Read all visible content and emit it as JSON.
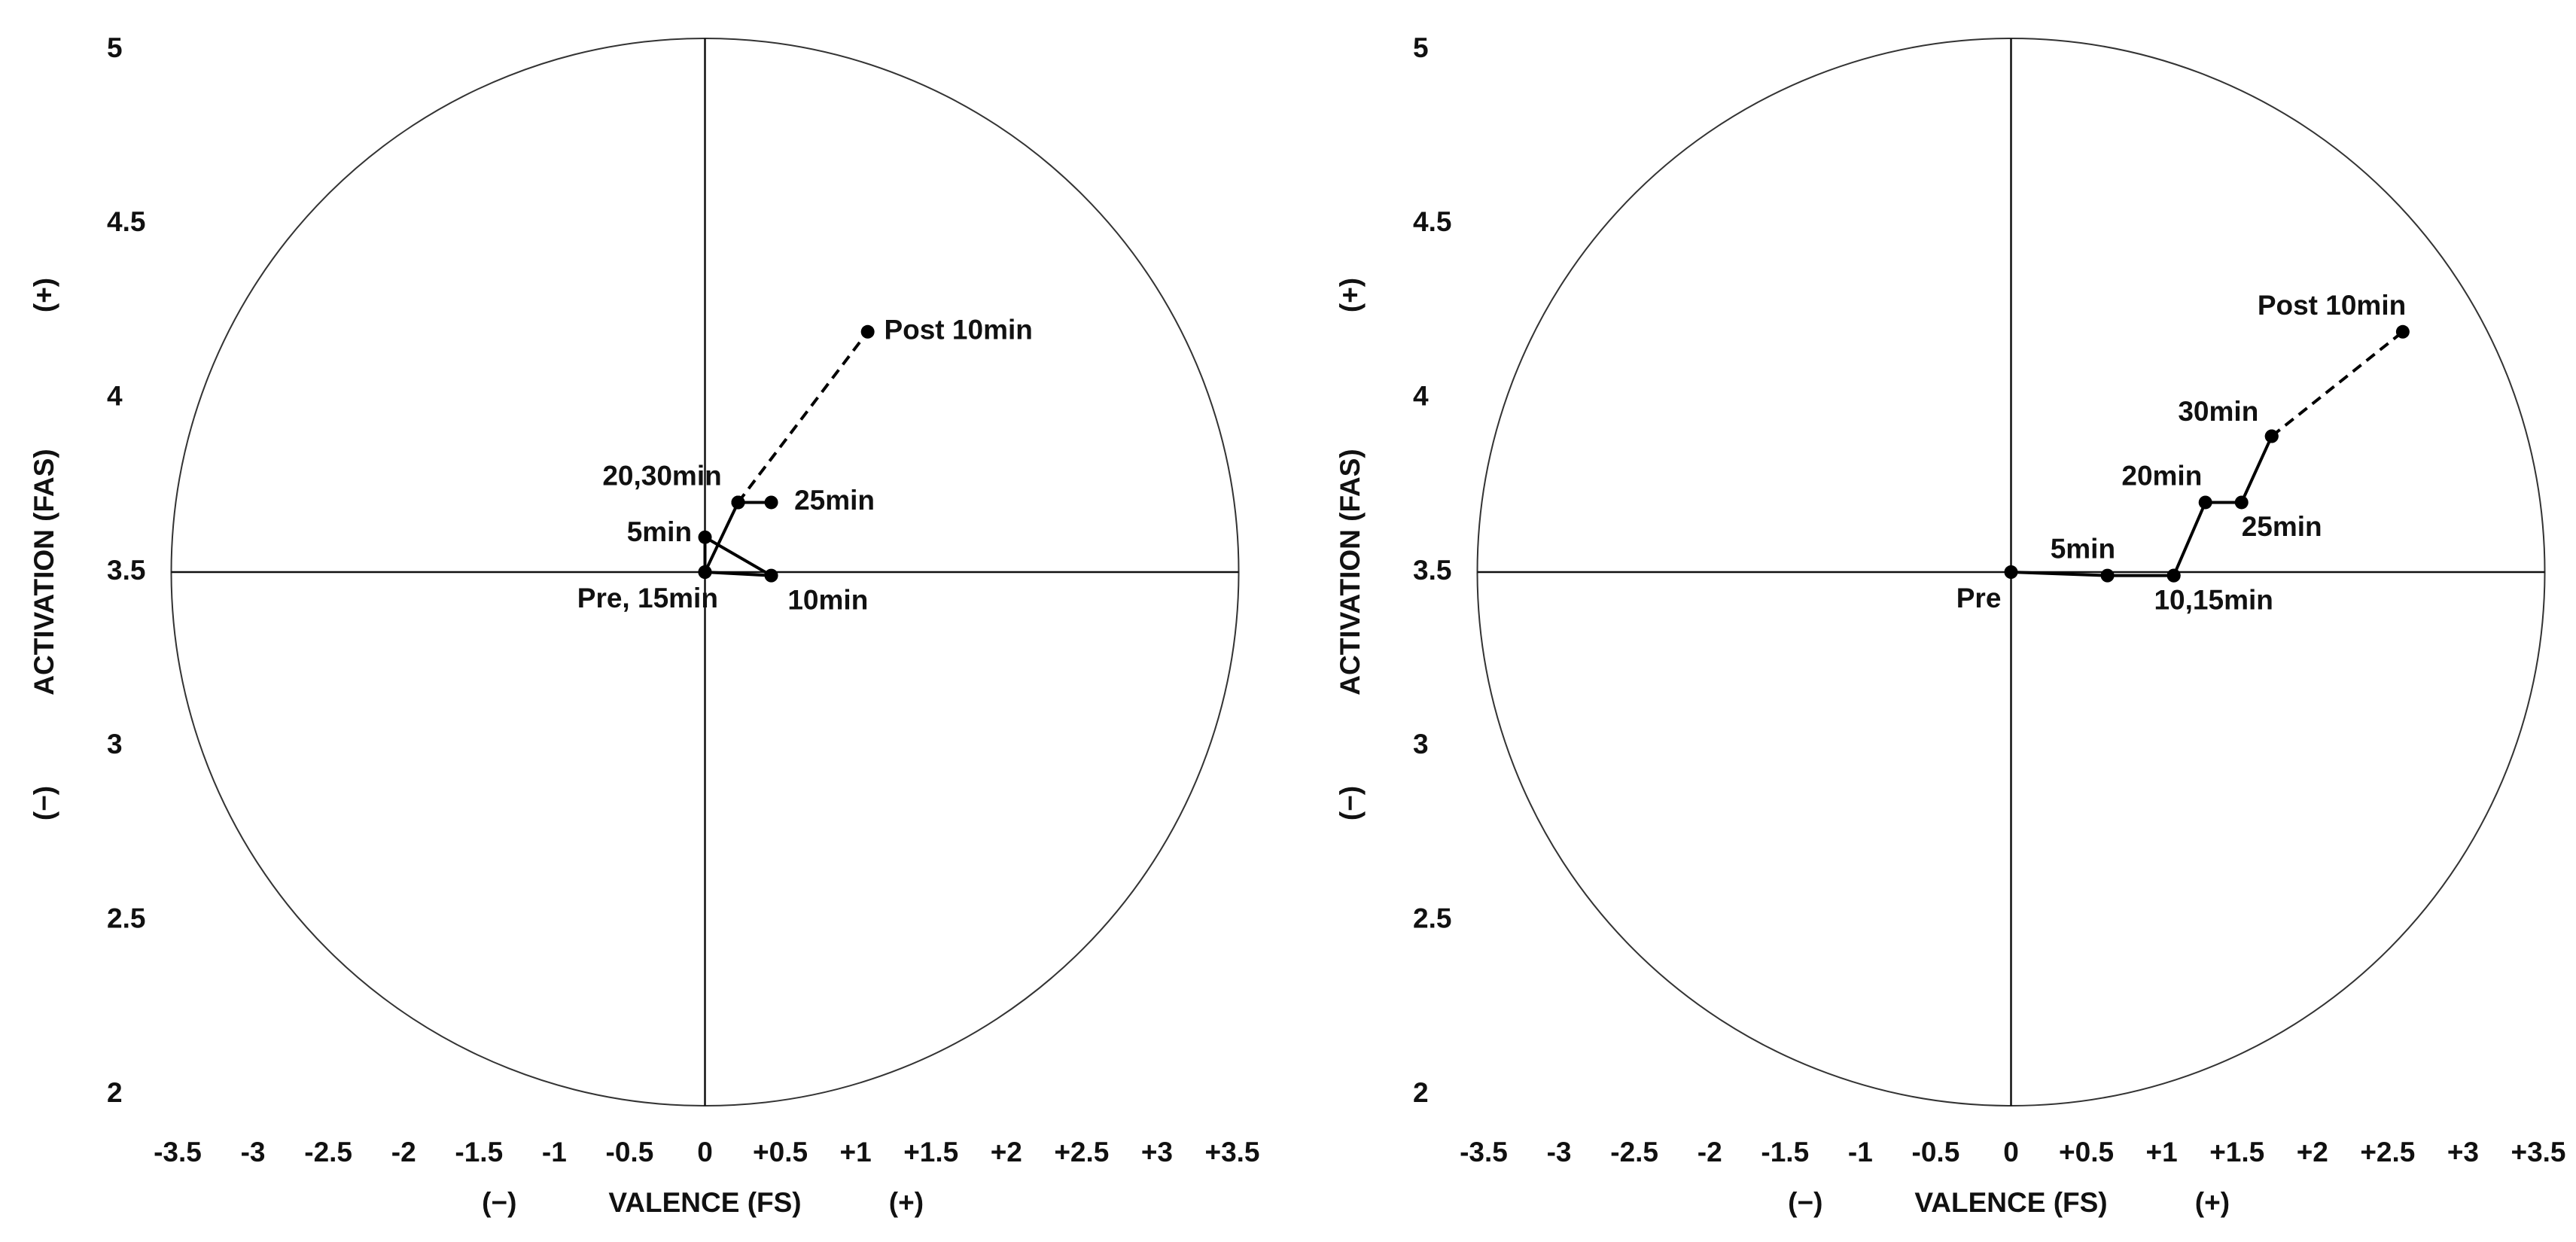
{
  "chart_data": [
    {
      "type": "circumplex",
      "x_label": "VALENCE (FS)",
      "x_sign_labels": [
        "(−)",
        "(+)"
      ],
      "y_label": "ACTIVATION (FAS)",
      "y_sign_labels": [
        "(−)",
        "(+)"
      ],
      "xlim": [
        -3.5,
        3.5
      ],
      "xticks": [
        -3.5,
        -3,
        -2.5,
        -2,
        -1.5,
        -1,
        -0.5,
        0,
        {
          "value": 0.5,
          "label": "+0.5"
        },
        {
          "value": 1,
          "label": "+1"
        },
        {
          "value": 1.5,
          "label": "+1.5"
        },
        {
          "value": 2,
          "label": "+2"
        },
        {
          "value": 2.5,
          "label": "+2.5"
        },
        {
          "value": 3,
          "label": "+3"
        },
        {
          "value": 3.5,
          "label": "+3.5"
        }
      ],
      "ylim": [
        2,
        5
      ],
      "yticks": [
        2,
        2.5,
        3,
        3.5,
        4,
        4.5,
        5
      ],
      "color": "#000000",
      "series": [
        {
          "linestyle": "solid",
          "x": [
            0,
            0,
            0.44,
            0,
            0.22,
            0.44,
            0.22
          ],
          "values": [
            3.5,
            3.6,
            3.49,
            3.5,
            3.7,
            3.7,
            3.7
          ],
          "labels": [
            "Pre, 15min",
            "5min",
            "10min",
            null,
            "20,30min",
            "25min",
            null
          ]
        },
        {
          "linestyle": "dashed",
          "x": [
            0.22,
            1.08
          ],
          "values": [
            3.7,
            4.19
          ],
          "labels": [
            null,
            "Post 10min"
          ]
        }
      ]
    },
    {
      "type": "circumplex",
      "x_label": "VALENCE (FS)",
      "x_sign_labels": [
        "(−)",
        "(+)"
      ],
      "y_label": "ACTIVATION (FAS)",
      "y_sign_labels": [
        "(−)",
        "(+)"
      ],
      "xlim": [
        -3.5,
        3.5
      ],
      "xticks": [
        -3.5,
        -3,
        -2.5,
        -2,
        -1.5,
        -1,
        -0.5,
        0,
        {
          "value": 0.5,
          "label": "+0.5"
        },
        {
          "value": 1,
          "label": "+1"
        },
        {
          "value": 1.5,
          "label": "+1.5"
        },
        {
          "value": 2,
          "label": "+2"
        },
        {
          "value": 2.5,
          "label": "+2.5"
        },
        {
          "value": 3,
          "label": "+3"
        },
        {
          "value": 3.5,
          "label": "+3.5"
        }
      ],
      "ylim": [
        2,
        5
      ],
      "yticks": [
        2,
        2.5,
        3,
        3.5,
        4,
        4.5,
        5
      ],
      "color": "#000000",
      "series": [
        {
          "linestyle": "solid",
          "x": [
            0,
            0.64,
            1.08,
            1.08,
            1.29,
            1.53,
            1.73
          ],
          "values": [
            3.5,
            3.49,
            3.49,
            3.49,
            3.7,
            3.7,
            3.89
          ],
          "labels": [
            "Pre",
            "5min",
            "10,15min",
            null,
            "20min",
            "25min",
            "30min"
          ]
        },
        {
          "linestyle": "dashed",
          "x": [
            1.73,
            2.6
          ],
          "values": [
            3.89,
            4.19
          ],
          "labels": [
            null,
            "Post 10min"
          ]
        }
      ]
    }
  ]
}
